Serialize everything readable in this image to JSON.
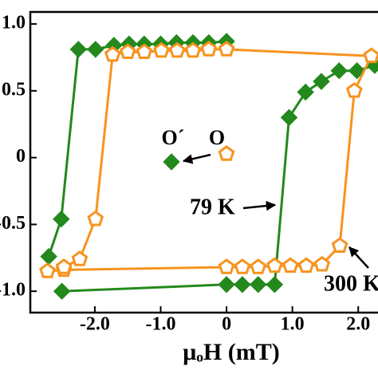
{
  "chart_data": {
    "type": "line",
    "x_label": "μₒH (mT)",
    "xlim": [
      -2.98,
      2.3
    ],
    "ylim": [
      -1.16,
      1.09
    ],
    "xticks": [
      {
        "value": -2,
        "label": "-2.0"
      },
      {
        "value": -1,
        "label": "-1.0"
      },
      0,
      {
        "value": 1,
        "label": "1.0"
      },
      {
        "value": 2,
        "label": "2.0"
      }
    ],
    "yticks": [
      {
        "value": -1,
        "label": "-1.0"
      },
      {
        "value": -0.5,
        "label": "-0.5"
      },
      0,
      0.5,
      {
        "value": 1,
        "label": "1.0"
      }
    ],
    "series": [
      {
        "name": "O´",
        "color": "#23891c",
        "marker": "diamond",
        "x": [
          -2.5,
          0,
          0.24,
          0.48,
          0.73,
          0.95,
          1.2,
          1.44,
          1.71,
          1.98,
          2.25,
          null,
          0,
          -0.27,
          -0.51,
          -0.76,
          -1.0,
          -1.25,
          -1.48,
          -1.71,
          -1.99,
          -2.25,
          -2.51,
          -2.7
        ],
        "values": [
          -1.0,
          -0.95,
          -0.95,
          -0.95,
          -0.95,
          0.3,
          0.49,
          0.57,
          0.65,
          0.65,
          0.69,
          null,
          0.87,
          0.86,
          0.86,
          0.86,
          0.85,
          0.85,
          0.85,
          0.84,
          0.81,
          0.81,
          -0.46,
          -0.74
        ]
      },
      {
        "name": "O",
        "color": "#f7931e",
        "marker": "pentagon",
        "x": [
          -2.72,
          -2.47,
          0,
          0.24,
          0.48,
          0.73,
          0.97,
          1.21,
          1.45,
          1.72,
          1.94,
          2.2,
          0,
          -0.27,
          -0.51,
          -0.75,
          -0.99,
          -1.25,
          -1.5,
          -1.73,
          -1.99,
          -2.23,
          -2.47
        ],
        "values": [
          -0.85,
          -0.84,
          -0.82,
          -0.82,
          -0.82,
          -0.81,
          -0.81,
          -0.81,
          -0.8,
          -0.66,
          0.5,
          0.76,
          0.81,
          0.81,
          0.8,
          0.8,
          0.8,
          0.79,
          0.79,
          0.77,
          -0.46,
          -0.76,
          -0.82
        ]
      }
    ],
    "annotations": [
      {
        "text": "79 K"
      },
      {
        "text": "300 K"
      }
    ]
  }
}
